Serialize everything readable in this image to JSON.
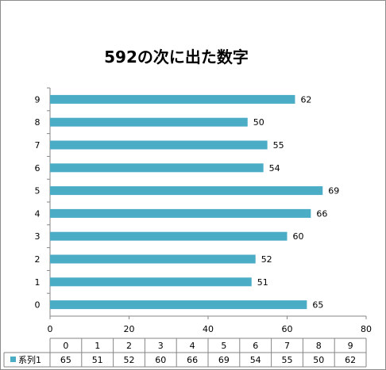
{
  "chart_data": {
    "type": "bar",
    "orientation": "horizontal",
    "title": "592の次に出た数字",
    "categories": [
      "0",
      "1",
      "2",
      "3",
      "4",
      "5",
      "6",
      "7",
      "8",
      "9"
    ],
    "series": [
      {
        "name": "系列1",
        "values": [
          65,
          51,
          52,
          60,
          66,
          69,
          54,
          55,
          50,
          62
        ],
        "color": "#4bacc6"
      }
    ],
    "value_axis": {
      "min": 0,
      "max": 80,
      "ticks": [
        0,
        20,
        40,
        60,
        80
      ]
    },
    "gridlines": false,
    "data_labels": true,
    "data_table": true
  }
}
